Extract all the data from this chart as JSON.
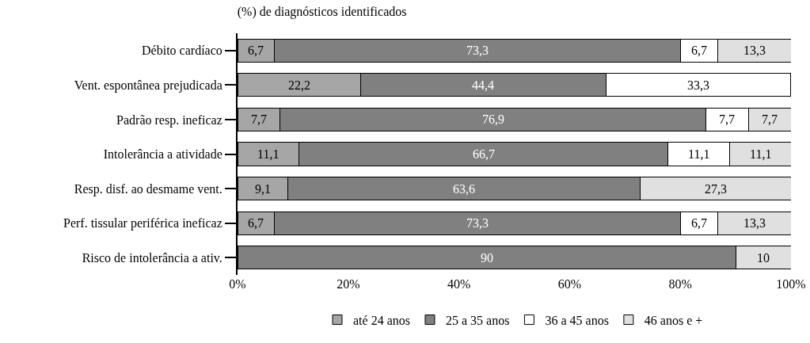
{
  "chart_data": {
    "type": "bar",
    "orientation": "horizontal",
    "stacked": true,
    "title": "(%) de diagnósticos identificados",
    "categories": [
      "Débito cardíaco",
      "Vent. espontânea prejudicada",
      "Padrão resp. ineficaz",
      "Intolerância a atividade",
      "Resp. disf. ao desmame vent.",
      "Perf. tissular periférica ineficaz",
      "Risco de intolerância a ativ."
    ],
    "series": [
      {
        "name": "até 24 anos",
        "color": "#a6a6a6",
        "values": [
          6.7,
          22.2,
          7.7,
          11.1,
          9.1,
          6.7,
          null
        ],
        "value_labels": [
          "6,7",
          "22,2",
          "7,7",
          "11,1",
          "9,1",
          "6,7",
          null
        ]
      },
      {
        "name": "25 a 35 anos",
        "color": "#808080",
        "values": [
          73.3,
          44.4,
          76.9,
          66.7,
          63.6,
          73.3,
          90
        ],
        "value_labels": [
          "73,3",
          "44,4",
          "76,9",
          "66,7",
          "63,6",
          "73,3",
          "90"
        ]
      },
      {
        "name": "36 a 45 anos",
        "color": "#ffffff",
        "values": [
          6.7,
          33.3,
          7.7,
          11.1,
          null,
          6.7,
          null
        ],
        "value_labels": [
          "6,7",
          "33,3",
          "7,7",
          "11,1",
          null,
          "6,7",
          null
        ]
      },
      {
        "name": "46 anos e +",
        "color": "#e0e0e0",
        "values": [
          13.3,
          null,
          7.7,
          11.1,
          27.3,
          13.3,
          10
        ],
        "value_labels": [
          "13,3",
          null,
          "7,7",
          "11,1",
          "27,3",
          "13,3",
          "10"
        ]
      }
    ],
    "xlim": [
      0,
      100
    ],
    "xticks": [
      {
        "value": 0,
        "label": "0%"
      },
      {
        "value": 20,
        "label": "20%"
      },
      {
        "value": 40,
        "label": "40%"
      },
      {
        "value": 60,
        "label": "60%"
      },
      {
        "value": 80,
        "label": "80%"
      },
      {
        "value": 100,
        "label": "100%"
      }
    ],
    "grid": false,
    "legend": "bottom"
  }
}
